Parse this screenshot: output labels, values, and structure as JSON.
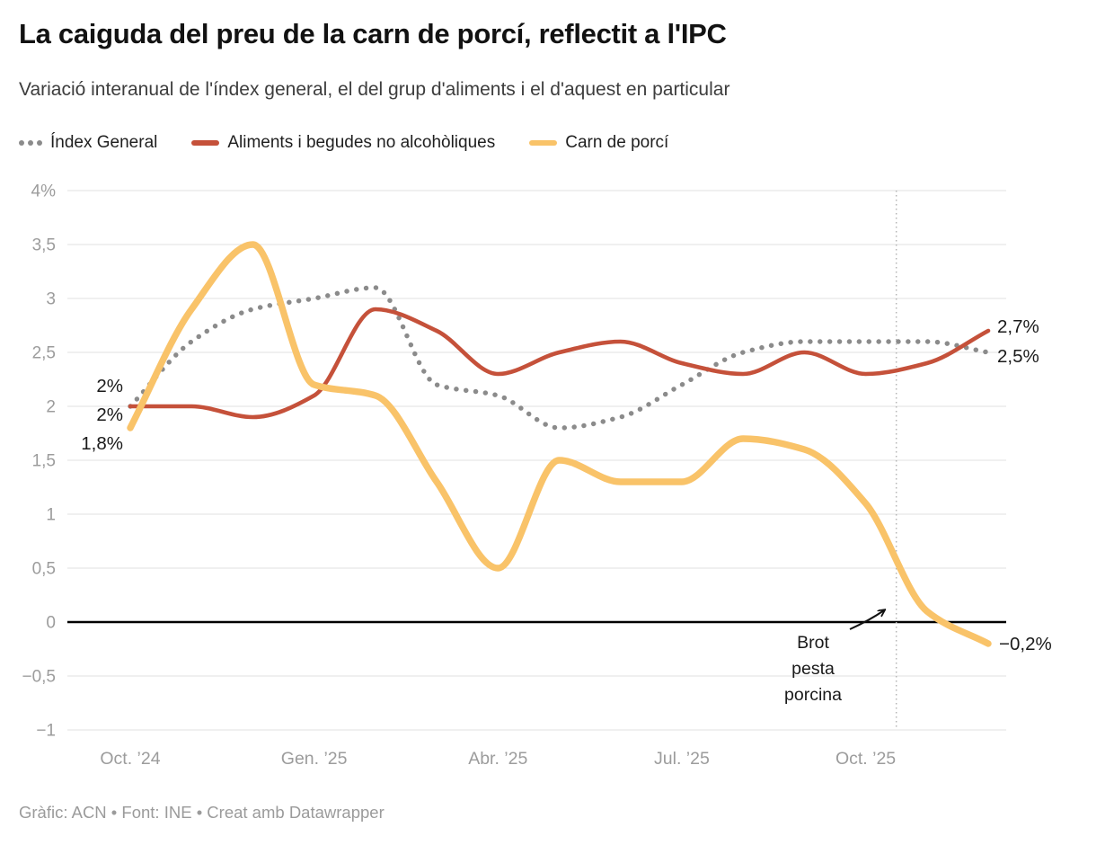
{
  "header": {
    "title": "La caiguda del preu de la carn de porcí, reflectit a l'IPC",
    "subtitle": "Variació interanual de l'índex general, el del grup d'aliments i el d'aquest en particular"
  },
  "footer": "Gràfic: ACN • Font: INE • Creat amb Datawrapper",
  "colors": {
    "general": "#8b8b8b",
    "aliments": "#c5513a",
    "porci": "#f9c369",
    "grid": "#e2e2e2",
    "zero_line": "#000000",
    "axis_text": "#9c9c9c",
    "annotation_line": "#b5b5b5",
    "label_text": "#1a1a1a"
  },
  "chart_data": {
    "type": "line",
    "n_points": 15,
    "x_frequency": "monthly",
    "x_tick_labels": [
      "Oct. ’24",
      "Gen. ’25",
      "Abr. ’25",
      "Jul. ’25",
      "Oct. ’25"
    ],
    "x_tick_indices": [
      0,
      3,
      6,
      9,
      12
    ],
    "y_axis": {
      "min": -1,
      "max": 4,
      "tick_values": [
        4,
        3.5,
        3,
        2.5,
        2,
        1.5,
        1,
        0.5,
        0,
        -0.5,
        -1
      ],
      "tick_labels": [
        "4%",
        "3,5",
        "3",
        "2,5",
        "2",
        "1,5",
        "1",
        "0,5",
        "0",
        "−0,5",
        "−1"
      ]
    },
    "series": [
      {
        "name": "Índex General",
        "style": "dotted",
        "values": [
          2.0,
          2.6,
          2.9,
          3.0,
          3.1,
          2.2,
          2.1,
          1.8,
          1.9,
          2.2,
          2.5,
          2.6,
          2.6,
          2.6,
          2.5
        ],
        "start_label": "2%",
        "end_label": "2,5%"
      },
      {
        "name": "Aliments i begudes no alcohòliques",
        "style": "solid",
        "values": [
          2.0,
          2.0,
          1.9,
          2.1,
          2.9,
          2.7,
          2.3,
          2.5,
          2.6,
          2.4,
          2.3,
          2.5,
          2.3,
          2.4,
          2.7
        ],
        "start_label": "2%",
        "end_label": "2,7%"
      },
      {
        "name": "Carn de porcí",
        "style": "solid",
        "values": [
          1.8,
          2.9,
          3.5,
          2.2,
          2.1,
          1.3,
          0.5,
          1.5,
          1.3,
          1.3,
          1.7,
          1.6,
          1.1,
          0.1,
          -0.2
        ],
        "start_label": "1,8%",
        "end_label": "−0,2%"
      }
    ],
    "annotation": {
      "text_lines": [
        "Brot",
        "pesta",
        "porcina"
      ],
      "vline_x_index": 12.5
    },
    "legend_position": "top",
    "grid": "horizontal-only"
  }
}
